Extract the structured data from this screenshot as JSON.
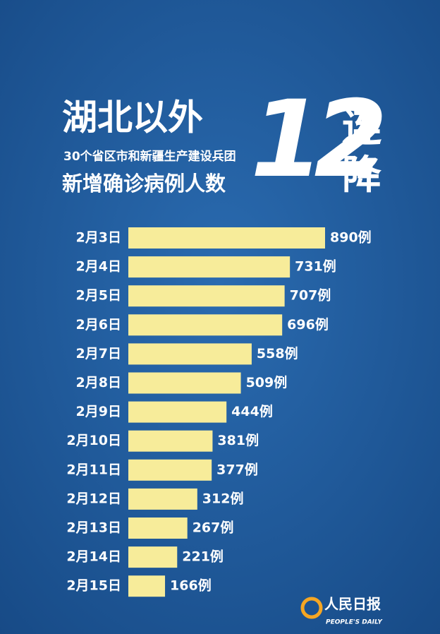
{
  "chart_data": {
    "type": "bar",
    "orientation": "horizontal",
    "title": "湖北以外",
    "title_number": "12",
    "title_suffix_1": "连",
    "title_suffix_2": "降",
    "subtitle": "30个省区市和新疆生产建设兵团",
    "subtitle_2": "新增确诊病例人数",
    "categories": [
      "2月3日",
      "2月4日",
      "2月5日",
      "2月6日",
      "2月7日",
      "2月8日",
      "2月9日",
      "2月10日",
      "2月11日",
      "2月12日",
      "2月13日",
      "2月14日",
      "2月15日"
    ],
    "values": [
      890,
      731,
      707,
      696,
      558,
      509,
      444,
      381,
      377,
      312,
      267,
      221,
      166
    ],
    "value_labels": [
      "890例",
      "731例",
      "707例",
      "696例",
      "558例",
      "509例",
      "444例",
      "381例",
      "377例",
      "312例",
      "267例",
      "221例",
      "166例"
    ],
    "color": "#f7ec9a",
    "source": "人民日报",
    "source_en": "PEOPLE'S DAILY"
  }
}
